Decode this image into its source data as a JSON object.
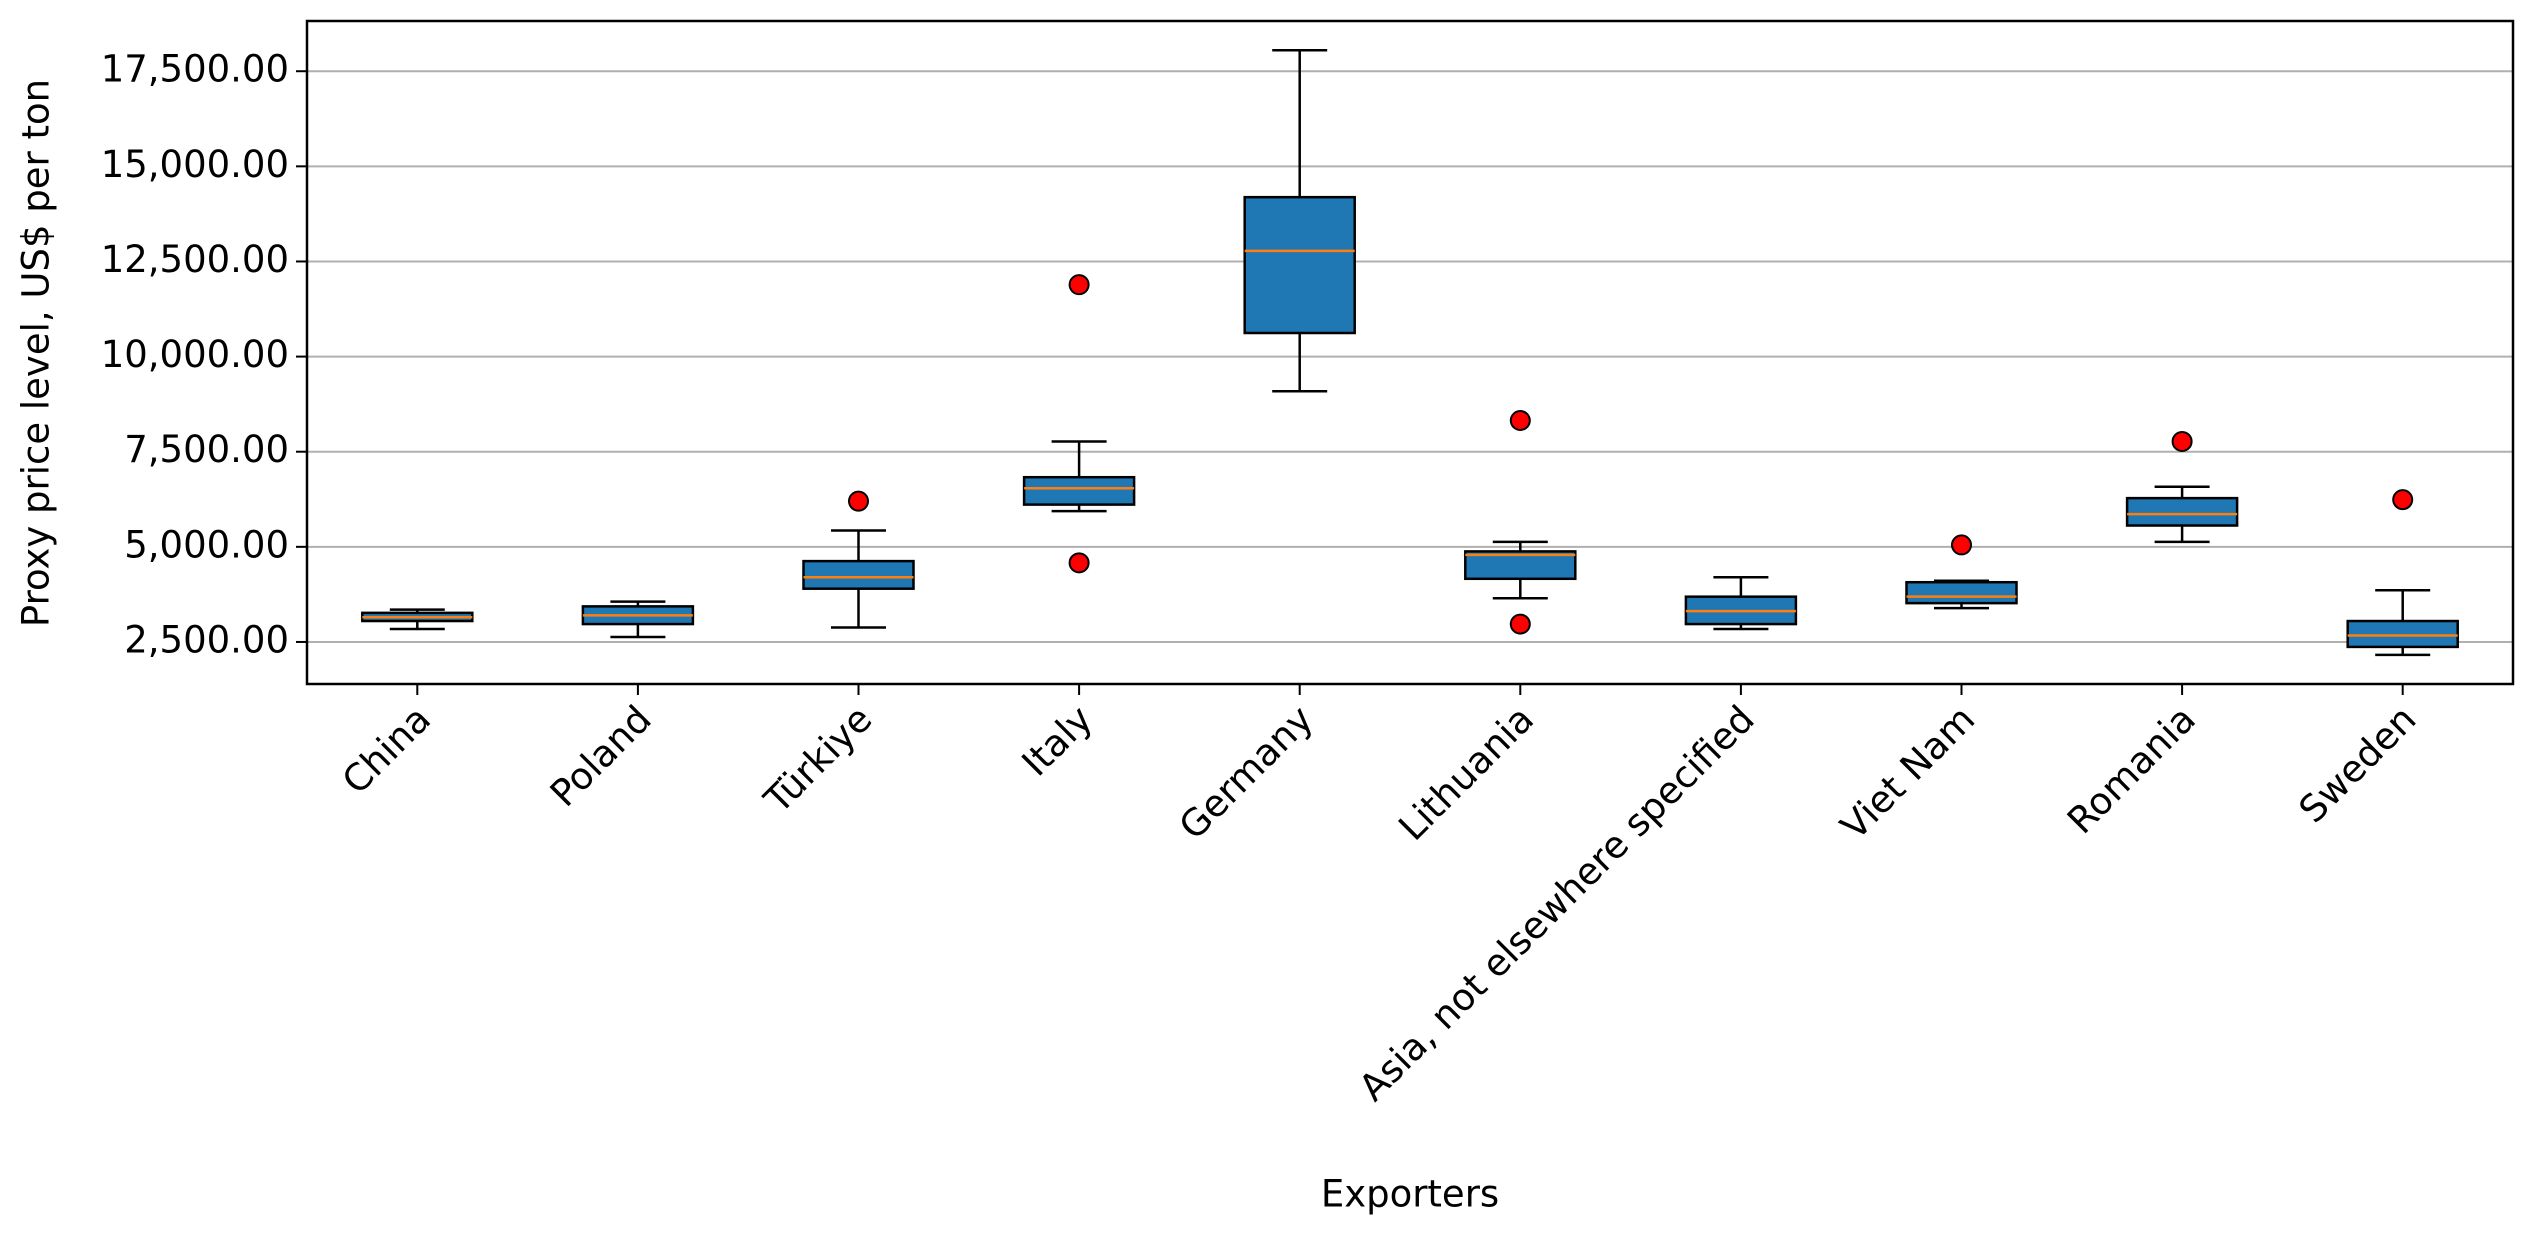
{
  "chart_data": {
    "type": "box",
    "x_label": "Exporters",
    "y_label": "Proxy price level, US$ per ton",
    "categories": [
      "China",
      "Poland",
      "Türkiye",
      "Italy",
      "Germany",
      "Lithuania",
      "Asia, not elsewhere specified",
      "Viet Nam",
      "Romania",
      "Sweden"
    ],
    "boxes": [
      {
        "whislo": 2840,
        "q1": 3050,
        "med": 3150,
        "q3": 3265,
        "whishi": 3350,
        "fliers": []
      },
      {
        "whislo": 2630,
        "q1": 2970,
        "med": 3200,
        "q3": 3435,
        "whishi": 3560,
        "fliers": []
      },
      {
        "whislo": 2880,
        "q1": 3900,
        "med": 4200,
        "q3": 4625,
        "whishi": 5430,
        "fliers": [
          6200
        ]
      },
      {
        "whislo": 5940,
        "q1": 6110,
        "med": 6540,
        "q3": 6830,
        "whishi": 7770,
        "fliers": [
          11890,
          4580
        ]
      },
      {
        "whislo": 9090,
        "q1": 10620,
        "med": 12780,
        "q3": 14190,
        "whishi": 18050,
        "fliers": []
      },
      {
        "whislo": 3650,
        "q1": 4160,
        "med": 4790,
        "q3": 4880,
        "whishi": 5130,
        "fliers": [
          8320,
          2970
        ]
      },
      {
        "whislo": 2840,
        "q1": 2970,
        "med": 3310,
        "q3": 3690,
        "whishi": 4200,
        "fliers": []
      },
      {
        "whislo": 3390,
        "q1": 3520,
        "med": 3690,
        "q3": 4070,
        "whishi": 4110,
        "fliers": [
          5050
        ]
      },
      {
        "whislo": 5130,
        "q1": 5560,
        "med": 5860,
        "q3": 6280,
        "whishi": 6580,
        "fliers": [
          7770
        ]
      },
      {
        "whislo": 2160,
        "q1": 2370,
        "med": 2670,
        "q3": 3050,
        "whishi": 3860,
        "fliers": [
          6240
        ]
      }
    ],
    "box_color": "#1f77b4",
    "median_color": "#ff7f0e",
    "flier_color": "#ff0000",
    "ylim": [
      1395,
      18820
    ],
    "yticks": [
      {
        "value": 2500,
        "label": "2,500.00"
      },
      {
        "value": 5000,
        "label": "5,000.00"
      },
      {
        "value": 7500,
        "label": "7,500.00"
      },
      {
        "value": 10000,
        "label": "10,000.00"
      },
      {
        "value": 12500,
        "label": "12,500.00"
      },
      {
        "value": 15000,
        "label": "15,000.00"
      },
      {
        "value": 17500,
        "label": "17,500.00"
      }
    ],
    "grid": true
  }
}
